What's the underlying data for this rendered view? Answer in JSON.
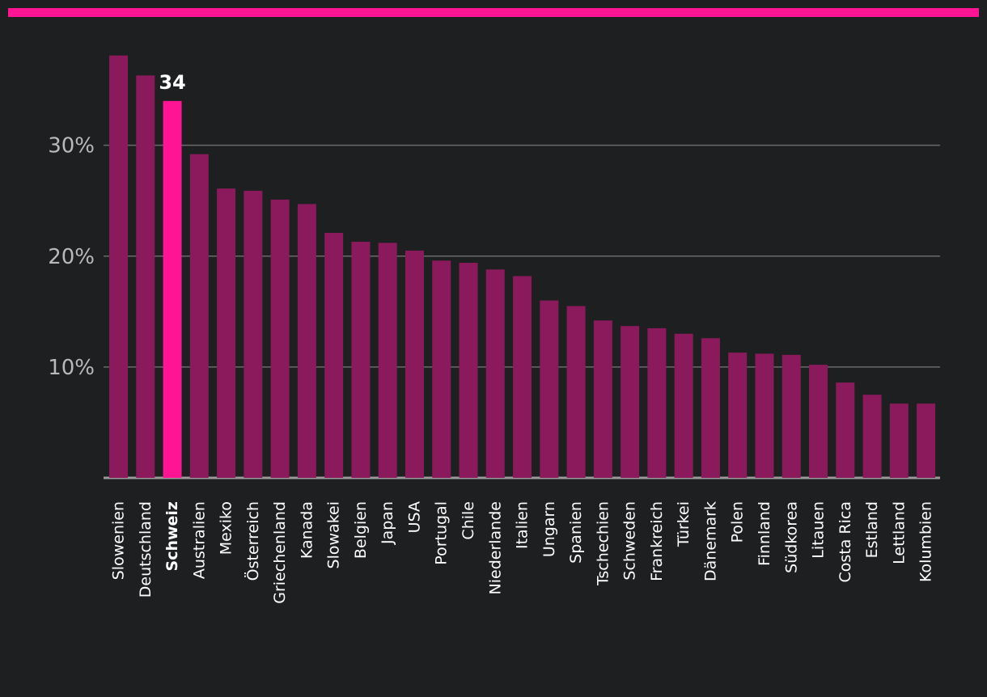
{
  "colors": {
    "background": "#1e1f20",
    "accent": "#ff1493",
    "bar": "#8a1a5c",
    "highlight": "#ff1493",
    "grid": "#6a6a6a",
    "axis": "#9a9a9a"
  },
  "chart_data": {
    "type": "bar",
    "title": "",
    "xlabel": "",
    "ylabel": "",
    "ylim": [
      0,
      38
    ],
    "yticks": [
      {
        "value": 10,
        "label": "10%"
      },
      {
        "value": 20,
        "label": "20%"
      },
      {
        "value": 30,
        "label": "30%"
      }
    ],
    "highlight_index": 2,
    "highlight_value_label": "34",
    "categories": [
      "Slowenien",
      "Deutschland",
      "Schweiz",
      "Australien",
      "Mexiko",
      "Österreich",
      "Griechenland",
      "Kanada",
      "Slowakei",
      "Belgien",
      "Japan",
      "USA",
      "Portugal",
      "Chile",
      "Niederlande",
      "Italien",
      "Ungarn",
      "Spanien",
      "Tschechien",
      "Schweden",
      "Frankreich",
      "Türkei",
      "Dänemark",
      "Polen",
      "Finnland",
      "Südkorea",
      "Litauen",
      "Costa Rica",
      "Estland",
      "Lettland",
      "Kolumbien"
    ],
    "values": [
      38.1,
      36.3,
      34,
      29.2,
      26.1,
      25.9,
      25.1,
      24.7,
      22.1,
      21.3,
      21.2,
      20.5,
      19.6,
      19.4,
      18.8,
      18.2,
      16.0,
      15.5,
      14.2,
      13.7,
      13.5,
      13.0,
      12.6,
      11.3,
      11.2,
      11.1,
      10.2,
      8.6,
      7.5,
      6.7,
      6.7
    ]
  }
}
